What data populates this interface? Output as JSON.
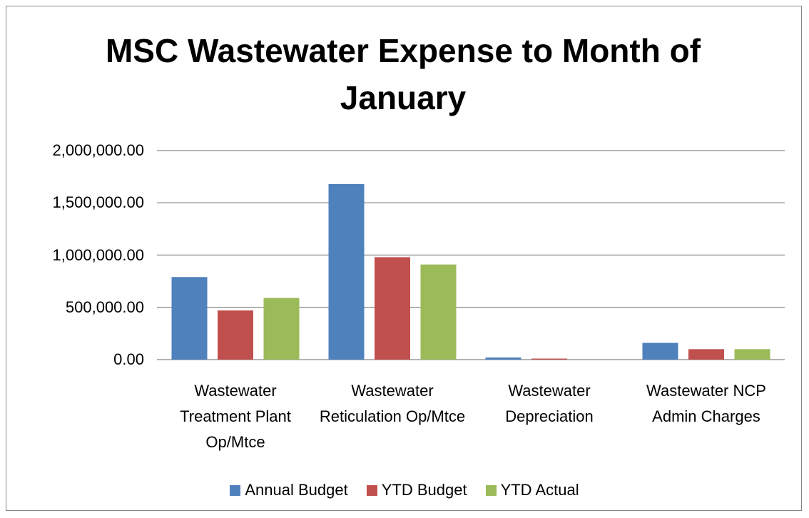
{
  "chart_data": {
    "type": "bar",
    "title": "MSC Wastewater Expense to Month of January",
    "categories": [
      "Wastewater Treatment Plant Op/Mtce",
      "Wastewater Reticulation Op/Mtce",
      "Wastewater Depreciation",
      "Wastewater NCP Admin Charges"
    ],
    "series": [
      {
        "name": "Annual Budget",
        "color": "#4f81bd",
        "values": [
          790000,
          1680000,
          20000,
          160000
        ]
      },
      {
        "name": "YTD Budget",
        "color": "#c0504d",
        "values": [
          470000,
          980000,
          10000,
          100000
        ]
      },
      {
        "name": "YTD Actual",
        "color": "#9bbb59",
        "values": [
          590000,
          910000,
          0,
          100000
        ]
      }
    ],
    "ylim": [
      0,
      2000000
    ],
    "yticks": [
      {
        "value": 0,
        "label": "0.00"
      },
      {
        "value": 500000,
        "label": "500,000.00"
      },
      {
        "value": 1000000,
        "label": "1,000,000.00"
      },
      {
        "value": 1500000,
        "label": "1,500,000.00"
      },
      {
        "value": 2000000,
        "label": "2,000,000.00"
      }
    ],
    "grid": true,
    "legend": "bottom"
  }
}
